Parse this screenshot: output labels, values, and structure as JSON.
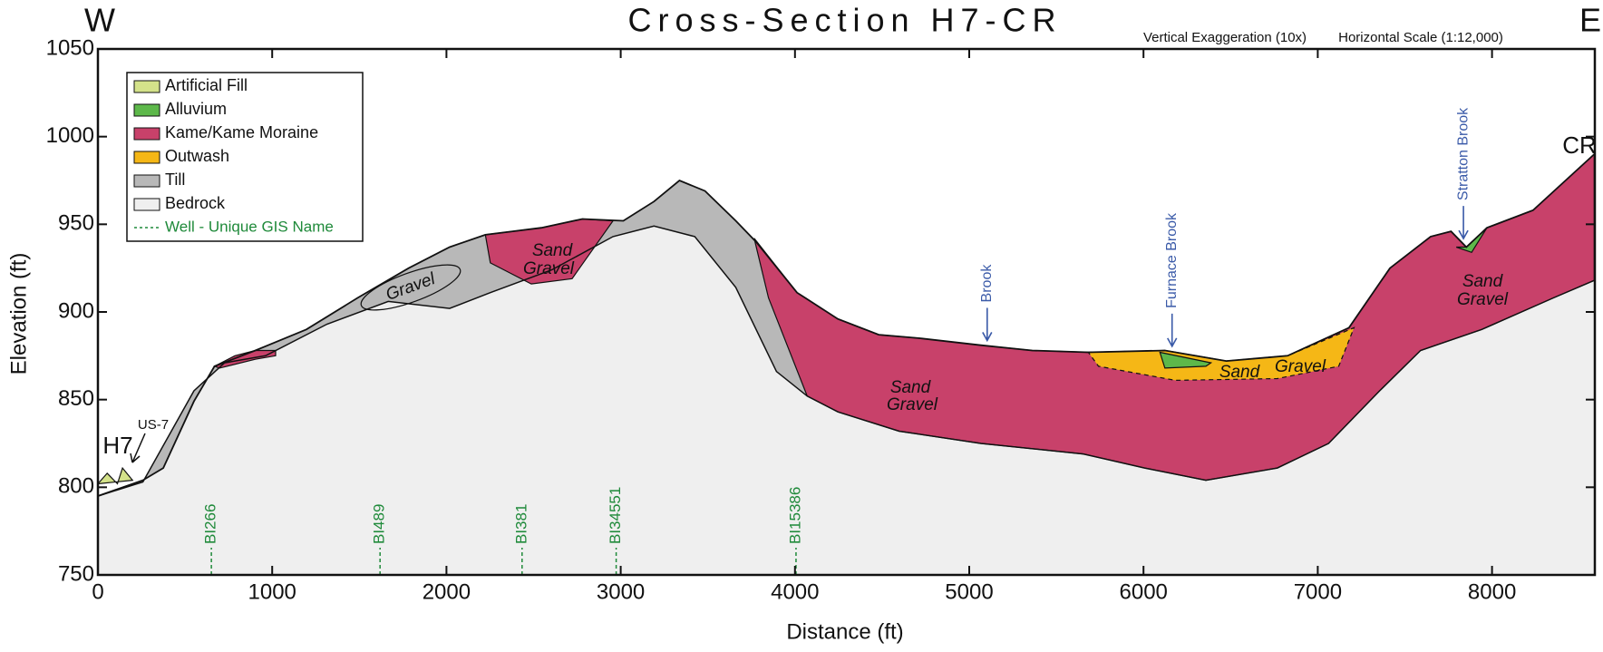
{
  "chart_data": {
    "type": "cross-section",
    "title": "Cross-Section H7-CR",
    "notes": [
      "Vertical Exaggeration (10x)",
      "Horizontal Scale (1:12,000)"
    ],
    "xlabel": "Distance (ft)",
    "ylabel": "Elevation (ft)",
    "xlim": [
      0,
      8590
    ],
    "ylim": [
      750,
      1050
    ],
    "xticks": [
      0,
      1000,
      2000,
      3000,
      4000,
      5000,
      6000,
      7000,
      8000
    ],
    "yticks": [
      750,
      800,
      850,
      900,
      950,
      1000,
      1050
    ],
    "directions": [
      "W",
      "E"
    ],
    "endpoints": [
      "H7",
      "CR"
    ],
    "road": "US-7",
    "ground": {
      "x": [
        0,
        258,
        375,
        551,
        669,
        903,
        1196,
        1490,
        1783,
        2018,
        2223,
        2545,
        2780,
        3015,
        3191,
        3337,
        3484,
        3660,
        3777,
        4012,
        4246,
        4481,
        4716,
        5067,
        5361,
        5683,
        6123,
        6475,
        6827,
        7179,
        7414,
        7648,
        7765,
        7853,
        7971,
        8235,
        8587
      ],
      "y": [
        795,
        804,
        811,
        849,
        869,
        878,
        890,
        908,
        925,
        937,
        944,
        948,
        953,
        952,
        963,
        975,
        969,
        952,
        940,
        911,
        896,
        887,
        885,
        881,
        878,
        877,
        878,
        872,
        875,
        891,
        925,
        943,
        946,
        937,
        948,
        958,
        990
      ]
    },
    "bedrock_top": {
      "x": [
        0,
        258,
        551,
        727,
        962,
        1314,
        1666,
        2018,
        2252,
        2604,
        2956,
        3191,
        3425,
        3660,
        3894,
        4070,
        4246,
        4598,
        5067,
        5654,
        6006,
        6358,
        6768,
        7062,
        7355,
        7590,
        7941,
        8352,
        8587
      ],
      "y": [
        795,
        803,
        855,
        871,
        875,
        893,
        906,
        902,
        911,
        924,
        943,
        949,
        943,
        914,
        866,
        852,
        843,
        832,
        825,
        819,
        811,
        804,
        811,
        825,
        855,
        878,
        890,
        908,
        918
      ]
    },
    "units": [
      {
        "name": "Artificial Fill",
        "color": "#d4e28a",
        "polygons": [
          {
            "x": [
              0,
              53,
              112,
              141,
              199
            ],
            "y": [
              802,
              808,
              802,
              811,
              804
            ]
          }
        ]
      },
      {
        "name": "Alluvium",
        "color": "#5db84a",
        "polygons": [
          {
            "x": [
              6094,
              6387,
              6358,
              6123
            ],
            "y": [
              877,
              871,
              869,
              868
            ]
          },
          {
            "x": [
              7795,
              7853,
              7971,
              7883
            ],
            "y": [
              937,
              937,
              948,
              934
            ]
          }
        ]
      },
      {
        "name": "Kame/Kame Moraine",
        "color": "#c8416a",
        "polygons": [
          {
            "x": [
              3766,
              4012,
              4246,
              4481,
              4716,
              5067,
              5361,
              5683,
              6123,
              6475,
              6827,
              7179,
              7414,
              7648,
              7765,
              7853,
              7971,
              8235,
              8587,
              8587,
              8352,
              7941,
              7590,
              7355,
              7062,
              6768,
              6358,
              6006,
              5654,
              5067,
              4598,
              4246,
              4070,
              3848
            ],
            "y": [
              942,
              911,
              896,
              887,
              885,
              881,
              878,
              877,
              878,
              872,
              875,
              891,
              925,
              943,
              946,
              937,
              948,
              958,
              990,
              918,
              908,
              890,
              878,
              855,
              825,
              811,
              804,
              811,
              819,
              825,
              832,
              843,
              852,
              908
            ]
          },
          {
            "x": [
              2223,
              2545,
              2780,
              2956,
              2721,
              2487,
              2252
            ],
            "y": [
              944,
              948,
              953,
              952,
              919,
              916,
              928
            ]
          },
          {
            "x": [
              669,
              786,
              903,
              1020,
              1020,
              903,
              698
            ],
            "y": [
              869,
              875,
              878,
              878,
              875,
              873,
              868
            ]
          }
        ]
      },
      {
        "name": "Outwash",
        "color": "#f5b716",
        "polygons": [
          {
            "x": [
              5683,
              6123,
              6475,
              6827,
              7208,
              7120,
              6768,
              6182,
              5742
            ],
            "y": [
              877,
              878,
              872,
              875,
              891,
              869,
              862,
              861,
              869
            ]
          }
        ]
      },
      {
        "name": "Till",
        "color": "#b8b8b8",
        "polygons": []
      },
      {
        "name": "Bedrock",
        "color": "#efefef",
        "polygons": []
      }
    ],
    "well_legend": {
      "name": "Well - Unique GIS Name",
      "color": "#1f8a3a"
    },
    "wells": [
      {
        "name": "BI266",
        "x": 651
      },
      {
        "name": "BI489",
        "x": 1619
      },
      {
        "name": "BI381",
        "x": 2434
      },
      {
        "name": "BI34551",
        "x": 2974
      },
      {
        "name": "BI15386",
        "x": 4006
      }
    ],
    "brooks": [
      {
        "name": "Brook",
        "x": 5103
      },
      {
        "name": "Furnace Brook",
        "x": 6164
      },
      {
        "name": "Stratton Brook",
        "x": 7836
      }
    ],
    "brook_color": "#3a5aa8",
    "annotations": [
      "Sand",
      "Gravel",
      "Gravel",
      "Sand",
      "Gravel",
      "Sand",
      "Gravel",
      "Sand",
      "Gravel"
    ]
  }
}
